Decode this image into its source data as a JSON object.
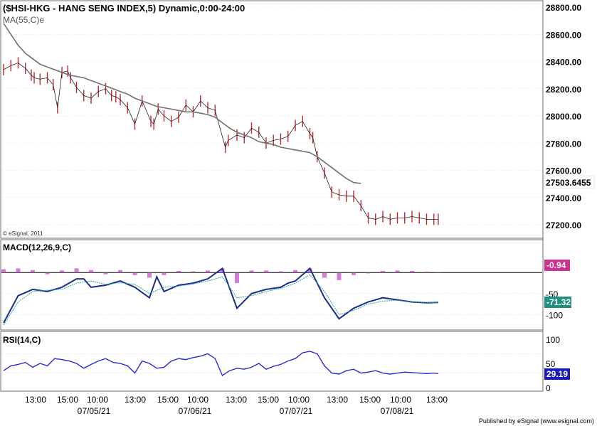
{
  "chart_data": [
    {
      "panel": "price",
      "type": "bar",
      "title": "($HSI-HKG - HANG SENG INDEX,5) Dynamic,0:00-24:00",
      "indicator_label": "MA(55,C)e",
      "copyright": "© eSignal, 2011",
      "ylim": [
        27200,
        28800
      ],
      "yticks": [
        "28800.00",
        "28600.00",
        "28400.00",
        "28200.00",
        "28000.00",
        "27800.00",
        "27600.00",
        "27400.00",
        "27200.00"
      ],
      "last_value": "27503.6455",
      "series": [
        {
          "name": "price",
          "x": [
            0,
            0.5,
            1,
            1.5,
            1.9,
            2.1,
            2.5,
            3,
            3.4,
            3.7,
            4,
            4.4,
            4.6,
            5,
            5.5,
            6,
            6.5,
            7,
            7.4,
            7.7,
            8,
            8.5,
            9,
            9.5,
            10.1,
            10.3,
            10.6,
            11,
            11.5,
            12,
            12.5,
            13,
            13.5,
            14,
            14.5,
            15.2,
            15.4,
            16,
            16.5,
            17,
            17.5,
            18,
            18.5,
            19,
            19.5,
            20,
            20.5,
            21,
            21.2,
            21.5,
            22,
            22.5,
            23,
            23.5,
            24,
            24.5,
            25,
            25.5,
            26,
            26.5,
            27,
            27.5,
            28,
            28.5,
            29,
            29.5,
            29.8
          ],
          "y": [
            28340,
            28370,
            28390,
            28350,
            28300,
            28280,
            28270,
            28280,
            28230,
            28060,
            28320,
            28330,
            28280,
            28210,
            28150,
            28130,
            28180,
            28200,
            28150,
            28140,
            28120,
            28060,
            27940,
            28110,
            27960,
            27940,
            28050,
            28000,
            27960,
            27990,
            28080,
            28030,
            28110,
            28060,
            28040,
            27770,
            27820,
            27860,
            27840,
            27910,
            27880,
            27800,
            27820,
            27830,
            27850,
            27930,
            27960,
            27870,
            27840,
            27700,
            27580,
            27440,
            27420,
            27410,
            27410,
            27340,
            27250,
            27240,
            27260,
            27240,
            27250,
            27250,
            27260,
            27250,
            27240,
            27240,
            27240
          ]
        },
        {
          "name": "MA(55,C)e",
          "x": [
            0,
            0.5,
            1,
            1.5,
            2,
            2.5,
            3,
            3.5,
            4,
            4.5,
            5,
            5.5,
            6,
            6.5,
            7,
            7.5,
            8,
            8.5,
            9,
            9.5,
            10,
            10.5,
            11,
            11.5,
            12,
            12.5,
            13,
            13.5,
            14,
            14.5,
            15,
            15.5,
            16,
            16.5,
            17,
            17.5,
            18,
            18.5,
            19,
            19.5,
            20,
            20.5,
            21,
            21.5,
            22,
            22.5,
            23,
            23.5,
            24,
            24.5,
            25,
            25.5,
            26,
            26.5,
            27,
            27.5,
            28,
            28.5,
            29,
            29.5,
            30
          ],
          "y": [
            28680,
            28600,
            28520,
            28460,
            28420,
            28380,
            28360,
            28340,
            28320,
            28300,
            28290,
            28280,
            28260,
            28240,
            28220,
            28200,
            28180,
            28160,
            28130,
            28110,
            28090,
            28070,
            28060,
            28050,
            28040,
            28030,
            28030,
            28020,
            28010,
            27990,
            27950,
            27910,
            27880,
            27860,
            27840,
            27810,
            27800,
            27790,
            27770,
            27760,
            27750,
            27740,
            27730,
            27700,
            27660,
            27620,
            27580,
            27540,
            27510,
            27503.6455,
            27503.6455,
            27503.6455,
            27503.6455,
            27503.6455,
            27503.6455,
            27503.6455,
            27503.6455,
            27503.6455,
            27503.6455,
            27503.6455,
            27503.6455
          ]
        }
      ]
    },
    {
      "panel": "macd",
      "type": "line",
      "title": "MACD(12,26,9,C)",
      "ylim": [
        -130,
        70
      ],
      "yticks": [
        "-50",
        "-100"
      ],
      "macd_value": "-0.94",
      "signal_value": "-71.32",
      "series": [
        {
          "name": "macd",
          "x": [
            0,
            1,
            2,
            3,
            4,
            5,
            5.5,
            6,
            7,
            8,
            9,
            10,
            10.5,
            11,
            12,
            13,
            14,
            15,
            16,
            17,
            18,
            19,
            19.5,
            20,
            21,
            22,
            23,
            24,
            25,
            26,
            27,
            28,
            29,
            29.8
          ],
          "y": [
            -120,
            -55,
            -40,
            -45,
            -35,
            -15,
            -15,
            -35,
            -30,
            -20,
            -35,
            -60,
            -10,
            -45,
            -30,
            -25,
            -15,
            10,
            -85,
            -50,
            -40,
            -35,
            -25,
            -20,
            10,
            -60,
            -110,
            -85,
            -70,
            -60,
            -65,
            -70,
            -72,
            -71
          ]
        },
        {
          "name": "signal",
          "x": [
            0,
            1,
            2,
            3,
            4,
            5,
            6,
            7,
            8,
            9,
            10,
            11,
            12,
            13,
            14,
            15,
            16,
            17,
            18,
            19,
            20,
            21,
            22,
            23,
            24,
            25,
            26,
            27,
            28,
            29,
            29.8
          ],
          "y": [
            -125,
            -70,
            -45,
            -42,
            -40,
            -25,
            -20,
            -28,
            -24,
            -28,
            -50,
            -35,
            -32,
            -27,
            -20,
            -10,
            -60,
            -55,
            -45,
            -38,
            -25,
            -5,
            -45,
            -100,
            -90,
            -75,
            -68,
            -66,
            -70,
            -71,
            -71.32
          ]
        },
        {
          "name": "histogram",
          "x": [
            0,
            1,
            2,
            3,
            4,
            5,
            6,
            7,
            8,
            9,
            10,
            11,
            12,
            13,
            14,
            15,
            16,
            17,
            18,
            19,
            20,
            21,
            22,
            23,
            24,
            25,
            26,
            27,
            28,
            29,
            29.8
          ],
          "y": [
            8,
            10,
            6,
            -4,
            5,
            10,
            6,
            -4,
            6,
            -6,
            -12,
            -6,
            4,
            3,
            5,
            10,
            -25,
            5,
            5,
            3,
            6,
            10,
            -12,
            -18,
            -6,
            -2,
            4,
            5,
            4,
            2,
            -0.94
          ]
        }
      ]
    },
    {
      "panel": "rsi",
      "type": "line",
      "title": "RSI(14,C)",
      "ylim": [
        0,
        100
      ],
      "yticks": [
        "100",
        "50",
        "0"
      ],
      "rsi_value": "29.19",
      "series": [
        {
          "name": "rsi",
          "x": [
            0,
            0.5,
            1,
            1.5,
            2,
            2.5,
            3,
            3.5,
            4,
            4.5,
            5,
            5.5,
            6,
            6.5,
            7,
            7.5,
            8,
            8.5,
            9,
            9.5,
            10,
            10.5,
            11,
            11.5,
            12,
            12.5,
            13,
            13.5,
            14,
            14.5,
            15,
            15.5,
            16,
            16.5,
            17,
            17.5,
            18,
            18.5,
            19,
            19.5,
            20,
            20.5,
            21,
            21.5,
            22,
            22.5,
            23,
            23.5,
            24,
            24.5,
            25,
            25.5,
            26,
            26.5,
            27,
            27.5,
            28,
            28.5,
            29,
            29.5,
            29.8
          ],
          "y": [
            35,
            45,
            48,
            52,
            42,
            50,
            45,
            60,
            58,
            55,
            50,
            40,
            48,
            55,
            60,
            52,
            50,
            45,
            30,
            55,
            50,
            40,
            42,
            55,
            60,
            58,
            62,
            65,
            70,
            60,
            25,
            35,
            40,
            38,
            42,
            50,
            38,
            44,
            48,
            55,
            60,
            72,
            75,
            70,
            45,
            30,
            28,
            35,
            38,
            30,
            32,
            35,
            30,
            28,
            30,
            32,
            31,
            30,
            29,
            30,
            29.19
          ]
        }
      ]
    }
  ],
  "xaxis": {
    "time_ticks": [
      "13:00",
      "15:00",
      "10:00",
      "13:00",
      "15:00",
      "10:00",
      "13:00",
      "15:00",
      "10:00",
      "13:00",
      "15:00",
      "10:00",
      "13:00"
    ],
    "date_ticks": [
      "07/05/21",
      "07/06/21",
      "07/07/21",
      "07/08/21"
    ]
  },
  "footer": "Published by eSignal (www.esignal.com)",
  "colors": {
    "frame": "#6e6e6e",
    "grid": "#d0d0d0",
    "candle": "#c0282d",
    "ma": "#707070",
    "macd": "#1c2e8c",
    "signal": "#2aa5a5",
    "histogram": "#c045c8",
    "rsi": "#2a2ad8",
    "label_bg": "#ffffff",
    "macd_badge": "#d0308f",
    "signal_badge": "#1f8f7f",
    "rsi_badge": "#1a1ab8"
  }
}
